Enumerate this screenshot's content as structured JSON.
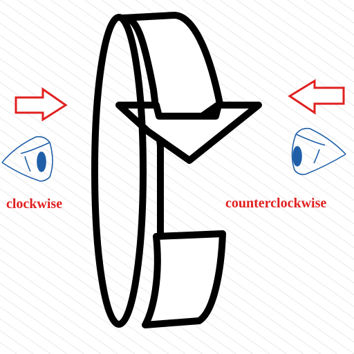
{
  "labels": {
    "left": "clockwise",
    "right": "counterclockwise"
  },
  "colors": {
    "label": "#e02020",
    "arrow": "#e02020",
    "eye": "#1f5fa8",
    "ring": "#000000",
    "hatch": "#e3e3e3"
  },
  "icons": {
    "left_arrow": "arrow-right-outline-icon",
    "right_arrow": "arrow-left-outline-icon",
    "left_eye": "eye-facing-right-icon",
    "right_eye": "eye-facing-left-icon",
    "center": "rotation-ring-icon"
  }
}
